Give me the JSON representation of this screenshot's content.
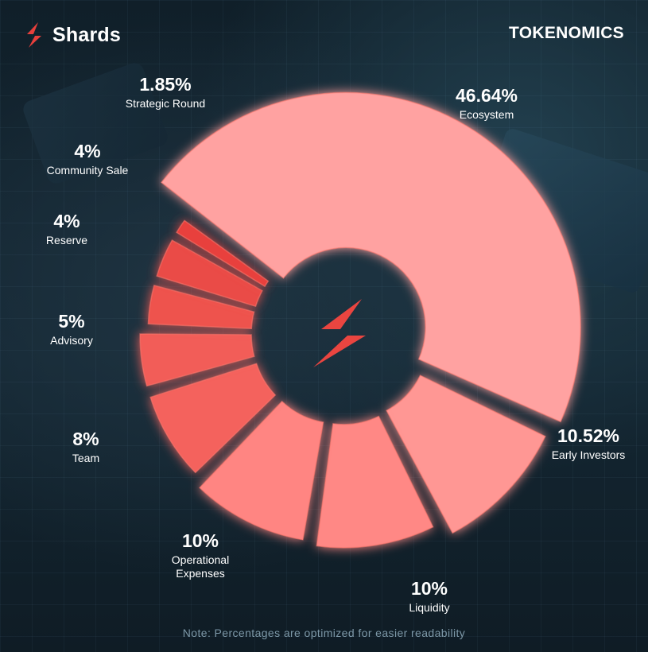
{
  "header": {
    "brand_name": "Shards",
    "title": "TOKENOMICS"
  },
  "footnote": "Note: Percentages are optimized for easier readability",
  "colors": {
    "background": "#122430",
    "accent": "#e8403c",
    "ecosystem": "#ffa2a1",
    "light_slice": "#ff8b88",
    "dark_slice": "#ef5651"
  },
  "icons": [
    "shards-logo-icon",
    "center-logo-icon"
  ],
  "chart_data": {
    "type": "pie",
    "title": "TOKENOMICS",
    "style": "exploded radial donut; slice radius varies per segment",
    "categories": [
      "Ecosystem",
      "Early Investors",
      "Liquidity",
      "Operational Expenses",
      "Team",
      "Advisory",
      "Reserve",
      "Community Sale",
      "Strategic Round"
    ],
    "values": [
      46.64,
      10.52,
      10,
      10,
      8,
      5,
      4,
      4,
      1.85
    ],
    "value_labels": [
      "46.64%",
      "10.52%",
      "10%",
      "10%",
      "8%",
      "5%",
      "4%",
      "4%",
      "1.85%"
    ],
    "label_lines": [
      [
        "Ecosystem"
      ],
      [
        "Early Investors"
      ],
      [
        "Liquidity"
      ],
      [
        "Operational",
        "Expenses"
      ],
      [
        "Team"
      ],
      [
        "Advisory"
      ],
      [
        "Reserve"
      ],
      [
        "Community Sale"
      ],
      [
        "Strategic Round"
      ]
    ],
    "slice_colors": [
      "#ffa2a1",
      "#ff9794",
      "#ff8885",
      "#ff8582",
      "#f4625d",
      "#f25d58",
      "#ee534e",
      "#ea4b46",
      "#e8403c"
    ],
    "legend": "none"
  }
}
